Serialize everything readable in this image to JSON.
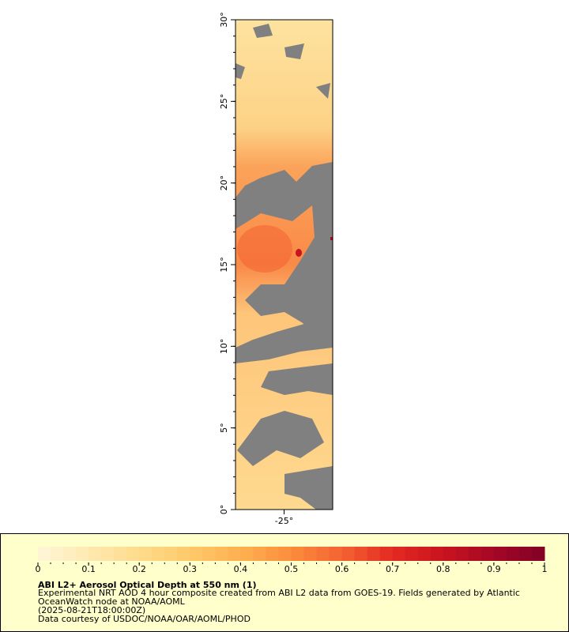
{
  "map": {
    "ylim": [
      0,
      30
    ],
    "xlim": [
      -28,
      -22
    ],
    "yticks": [
      {
        "value": 0,
        "label": "0°"
      },
      {
        "value": 5,
        "label": "5°"
      },
      {
        "value": 10,
        "label": "10°"
      },
      {
        "value": 15,
        "label": "15°"
      },
      {
        "value": 20,
        "label": "20°"
      },
      {
        "value": 25,
        "label": "25°"
      },
      {
        "value": 30,
        "label": "30°"
      }
    ],
    "xticks": [
      {
        "value": -25,
        "label": "-25°"
      }
    ]
  },
  "colorbar": {
    "range": [
      0,
      1
    ],
    "ticks": [
      0,
      0.1,
      0.2,
      0.3,
      0.4,
      0.5,
      0.6,
      0.7,
      0.8,
      0.9,
      1
    ],
    "colors": [
      "#fff6d8",
      "#ffe9b0",
      "#fedb8c",
      "#fec96a",
      "#fdb050",
      "#fc8c3c",
      "#f46332",
      "#e32a22",
      "#c9131f",
      "#a40826",
      "#800026"
    ]
  },
  "legend": {
    "title": "ABI L2+ Aerosol Optical Depth at 550 nm (1)",
    "lines": [
      "Experimental NRT AOD 4 hour composite created from ABI L2 data from GOES-19. Fields generated by Atlantic",
      "OceanWatch node at NOAA/AOML",
      "(2025-08-21T18:00:00Z)",
      "Data courtesy of USDOC/NOAA/OAR/AOML/PHOD"
    ]
  }
}
